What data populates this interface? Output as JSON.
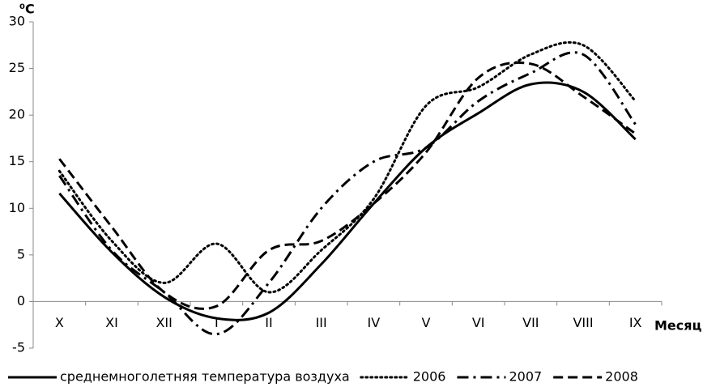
{
  "chart_data": {
    "type": "line",
    "y_label": "⁰C",
    "x_label": "Месяц",
    "categories": [
      "X",
      "XI",
      "XII",
      "I",
      "II",
      "III",
      "IV",
      "V",
      "VI",
      "VII",
      "VIII",
      "IX"
    ],
    "ylim": [
      -5,
      30
    ],
    "yticks": [
      -5,
      0,
      5,
      10,
      15,
      20,
      25,
      30
    ],
    "smooth": true,
    "series": [
      {
        "name": "среднемноголетняя температура воздуха",
        "color": "#000000",
        "dash": "solid",
        "values": [
          11.6,
          5.3,
          0.5,
          -1.8,
          -1.2,
          4,
          10.5,
          16.5,
          20.2,
          23.3,
          22.5,
          17.4
        ]
      },
      {
        "name": "2006",
        "color": "#000000",
        "dash": "dotted",
        "values": [
          14,
          6.5,
          2,
          6.2,
          1,
          5.5,
          11,
          21,
          23,
          26.5,
          27.5,
          21.5
        ]
      },
      {
        "name": "2007",
        "color": "#000000",
        "dash": "dashdot",
        "values": [
          13.5,
          5.5,
          1,
          -3.5,
          2,
          10,
          15,
          16.5,
          21.5,
          24.5,
          26.5,
          19
        ]
      },
      {
        "name": "2008",
        "color": "#000000",
        "dash": "dashed",
        "values": [
          15.3,
          8,
          1,
          -0.5,
          5.5,
          6.5,
          10.5,
          16,
          24,
          25.5,
          22,
          18
        ]
      }
    ]
  }
}
